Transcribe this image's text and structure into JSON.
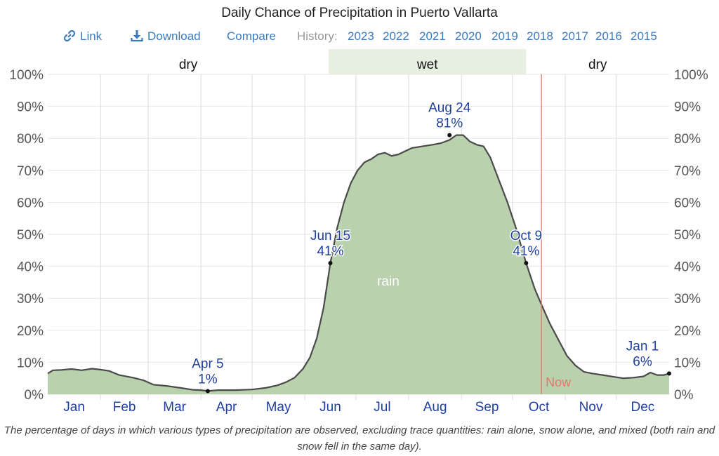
{
  "title": "Daily Chance of Precipitation in Puerto Vallarta",
  "toolbar": {
    "link_label": "Link",
    "link_icon": "link-icon",
    "download_label": "Download",
    "download_icon": "download-icon",
    "compare_label": "Compare",
    "history_label": "History:",
    "years": [
      "2023",
      "2022",
      "2021",
      "2020",
      "2019",
      "2018",
      "2017",
      "2016",
      "2015"
    ]
  },
  "colors": {
    "link": "#3a7bbf",
    "area_fill": "#b3cca5",
    "line": "#4a4a4a",
    "wet_band": "#e6efe0",
    "now_line": "#e07a6a",
    "annotation": "#1f3f9f"
  },
  "chart_data": {
    "type": "area",
    "title": "Daily Chance of Precipitation in Puerto Vallarta",
    "xlabel": "",
    "ylabel": "",
    "ylim": [
      0,
      100
    ],
    "y_ticks": [
      "0%",
      "10%",
      "20%",
      "30%",
      "40%",
      "50%",
      "60%",
      "70%",
      "80%",
      "90%",
      "100%"
    ],
    "x_tick_labels": [
      "Jan",
      "Feb",
      "Mar",
      "Apr",
      "May",
      "Jun",
      "Jul",
      "Aug",
      "Sep",
      "Oct",
      "Nov",
      "Dec"
    ],
    "x_units": "day of year",
    "xlim": [
      0,
      365
    ],
    "grid": true,
    "seasons": [
      {
        "label": "dry",
        "start_day": 0,
        "end_day": 165
      },
      {
        "label": "wet",
        "start_day": 165,
        "end_day": 281
      },
      {
        "label": "dry",
        "start_day": 281,
        "end_day": 365
      }
    ],
    "series": [
      {
        "name": "rain",
        "x": [
          0,
          3,
          8,
          14,
          20,
          26,
          31,
          36,
          42,
          50,
          56,
          62,
          70,
          78,
          85,
          90,
          94,
          100,
          110,
          120,
          128,
          135,
          140,
          145,
          150,
          154,
          158,
          162,
          166,
          170,
          174,
          178,
          182,
          186,
          190,
          194,
          198,
          202,
          206,
          210,
          214,
          220,
          226,
          231,
          236,
          240,
          244,
          248,
          252,
          256,
          260,
          265,
          270,
          275,
          281,
          286,
          290,
          295,
          300,
          305,
          310,
          315,
          320,
          326,
          332,
          338,
          344,
          350,
          354,
          358,
          362,
          365
        ],
        "values": [
          6.5,
          7.5,
          7.6,
          7.9,
          7.5,
          8.0,
          7.7,
          7.3,
          6.0,
          5.2,
          4.4,
          3.0,
          2.6,
          2.0,
          1.4,
          1.3,
          1.0,
          1.3,
          1.3,
          1.5,
          2.0,
          2.8,
          3.8,
          5.2,
          8.0,
          11.5,
          17.5,
          27,
          41,
          52,
          60,
          66,
          70,
          72.5,
          73.5,
          75,
          75.5,
          74.5,
          75,
          76,
          77,
          77.5,
          78,
          78.5,
          79.5,
          81,
          81,
          79,
          78,
          77.5,
          74,
          67,
          60,
          52,
          41,
          33,
          28,
          22,
          17,
          12,
          9,
          7,
          6.5,
          6,
          5.5,
          5,
          5.2,
          5.6,
          6.8,
          6.0,
          6.0,
          6.5
        ],
        "label_day": 200,
        "label_value": 34
      }
    ],
    "annotations": [
      {
        "date": "Apr 5",
        "value": "1%",
        "day": 94,
        "y": 1
      },
      {
        "date": "Jun 15",
        "value": "41%",
        "day": 166,
        "y": 41
      },
      {
        "date": "Aug 24",
        "value": "81%",
        "day": 236,
        "y": 81
      },
      {
        "date": "Oct 9",
        "value": "41%",
        "day": 281,
        "y": 41
      },
      {
        "date": "Jan 1",
        "value": "6%",
        "day": 365,
        "y": 6.5
      }
    ],
    "now_marker": {
      "label": "Now",
      "day": 290
    },
    "month_start_days": [
      0,
      31,
      59,
      90,
      120,
      151,
      181,
      212,
      243,
      273,
      304,
      334,
      365
    ]
  },
  "caption": "The percentage of days in which various types of precipitation are observed, excluding trace quantities: rain alone, snow alone, and mixed (both rain and snow fell in the same day)."
}
